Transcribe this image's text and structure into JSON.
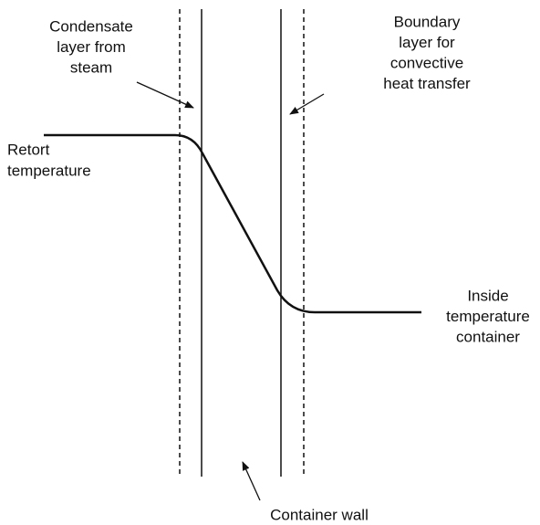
{
  "labels": {
    "condensate": [
      "Condensate",
      "layer from",
      "steam"
    ],
    "boundary": [
      "Boundary",
      "layer for",
      "convective",
      "heat transfer"
    ],
    "retort": [
      "Retort",
      "temperature"
    ],
    "inside": [
      "Inside",
      "temperature",
      "container"
    ],
    "wall": [
      "Container wall"
    ]
  }
}
